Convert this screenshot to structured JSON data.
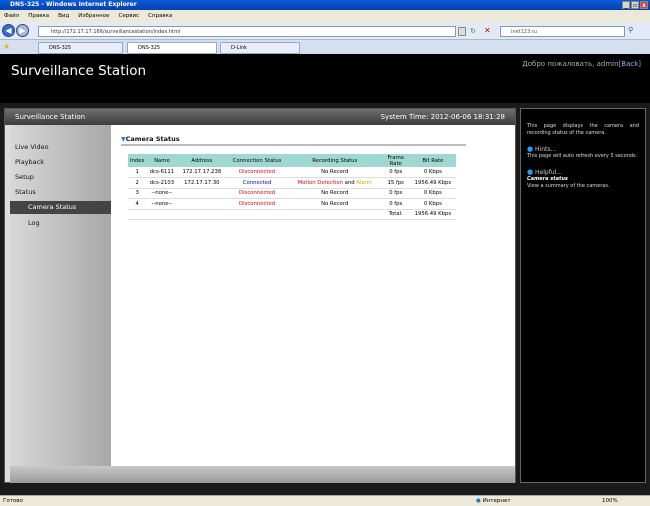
{
  "window": {
    "title": "DNS-325 - Windows Internet Explorer",
    "controls": [
      "_",
      "▫",
      "x"
    ]
  },
  "menu": [
    "Файл",
    "Правка",
    "Вид",
    "Избранное",
    "Сервис",
    "Справка"
  ],
  "address": {
    "url": "http://172.17.17.166/surveillancestation/index.html",
    "search": "inet123.ru"
  },
  "tabs": [
    "DNS-325",
    "DNS-325",
    "D-Link"
  ],
  "header": {
    "brand": "Surveillance Station",
    "welcome": "Добро пожаловать, admin",
    "back": "Back"
  },
  "main": {
    "title": "Surveillance Station",
    "system_time": "System Time: 2012-06-06 18:31:28"
  },
  "sidebar": [
    "Live Video",
    "Playback",
    "Setup",
    "Status",
    "Camera Status",
    "Log"
  ],
  "section": {
    "title": "Camera Status"
  },
  "table": {
    "headers": [
      "Index",
      "Name",
      "Address",
      "Connection Status",
      "Recording Status",
      "Frame Rate",
      "Bit Rate"
    ],
    "rows": [
      {
        "index": "1",
        "name": "dcs-6111",
        "address": "172.17.17.238",
        "conn": "Disconnected",
        "rec": "No Record",
        "fps": "0 fps",
        "bitrate": "0 Kbps"
      },
      {
        "index": "2",
        "name": "dcs-2103",
        "address": "172.17.17.30",
        "conn": "Connected",
        "rec_a": "Motion Detection",
        "rec_and": " and ",
        "rec_b": "Alarm",
        "fps": "15 fps",
        "bitrate": "1956.49 Kbps"
      },
      {
        "index": "3",
        "name": "--none--",
        "address": "",
        "conn": "Disconnected",
        "rec": "No Record",
        "fps": "0 fps",
        "bitrate": "0 Kbps"
      },
      {
        "index": "4",
        "name": "--none--",
        "address": "",
        "conn": "Disconnected",
        "rec": "No Record",
        "fps": "0 fps",
        "bitrate": "0 Kbps"
      }
    ],
    "total_label": "Total:",
    "total": "1956.49 Kbps"
  },
  "help": {
    "desc": "This page displays the camera and recording status of the camera.",
    "hints_title": "Hints...",
    "hints": "This page will auto refresh every 5 seconds.",
    "helpful_title": "Helpful...",
    "helpful_sub": "Camera status",
    "helpful_text": "View a summary of the cameras."
  },
  "statusbar": {
    "text": "Готово",
    "zone": "Интернет",
    "zoom": "100%"
  }
}
